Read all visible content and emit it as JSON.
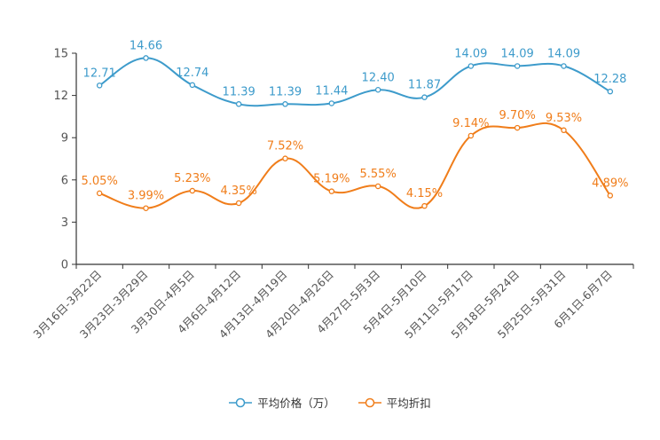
{
  "chart_data": {
    "type": "line",
    "categories": [
      "3月16日-3月22日",
      "3月23日-3月29日",
      "3月30日-4月5日",
      "4月6日-4月12日",
      "4月13日-4月19日",
      "4月20日-4月26日",
      "4月27日-5月3日",
      "5月4日-5月10日",
      "5月11日-5月17日",
      "5月18日-5月24日",
      "5月25日-5月31日",
      "6月1日-6月7日"
    ],
    "series": [
      {
        "name": "平均价格（万）",
        "color": "#3d9bcb",
        "values": [
          12.71,
          14.66,
          12.74,
          11.39,
          11.39,
          11.44,
          12.4,
          11.87,
          14.09,
          14.09,
          14.09,
          12.28
        ],
        "labels": [
          "12.71",
          "14.66",
          "12.74",
          "11.39",
          "11.39",
          "11.44",
          "12.40",
          "11.87",
          "14.09",
          "14.09",
          "14.09",
          "12.28"
        ]
      },
      {
        "name": "平均折扣",
        "color": "#f07d1a",
        "values": [
          5.05,
          3.99,
          5.23,
          4.35,
          7.52,
          5.19,
          5.55,
          4.15,
          9.14,
          9.7,
          9.53,
          4.89
        ],
        "labels": [
          "5.05%",
          "3.99%",
          "5.23%",
          "4.35%",
          "7.52%",
          "5.19%",
          "5.55%",
          "4.15%",
          "9.14%",
          "9.70%",
          "9.53%",
          "4.89%"
        ]
      }
    ],
    "y_ticks": [
      "0",
      "3",
      "6",
      "9",
      "12",
      "15"
    ],
    "ylim": [
      0,
      15
    ],
    "grid": false,
    "legend_position": "bottom"
  }
}
